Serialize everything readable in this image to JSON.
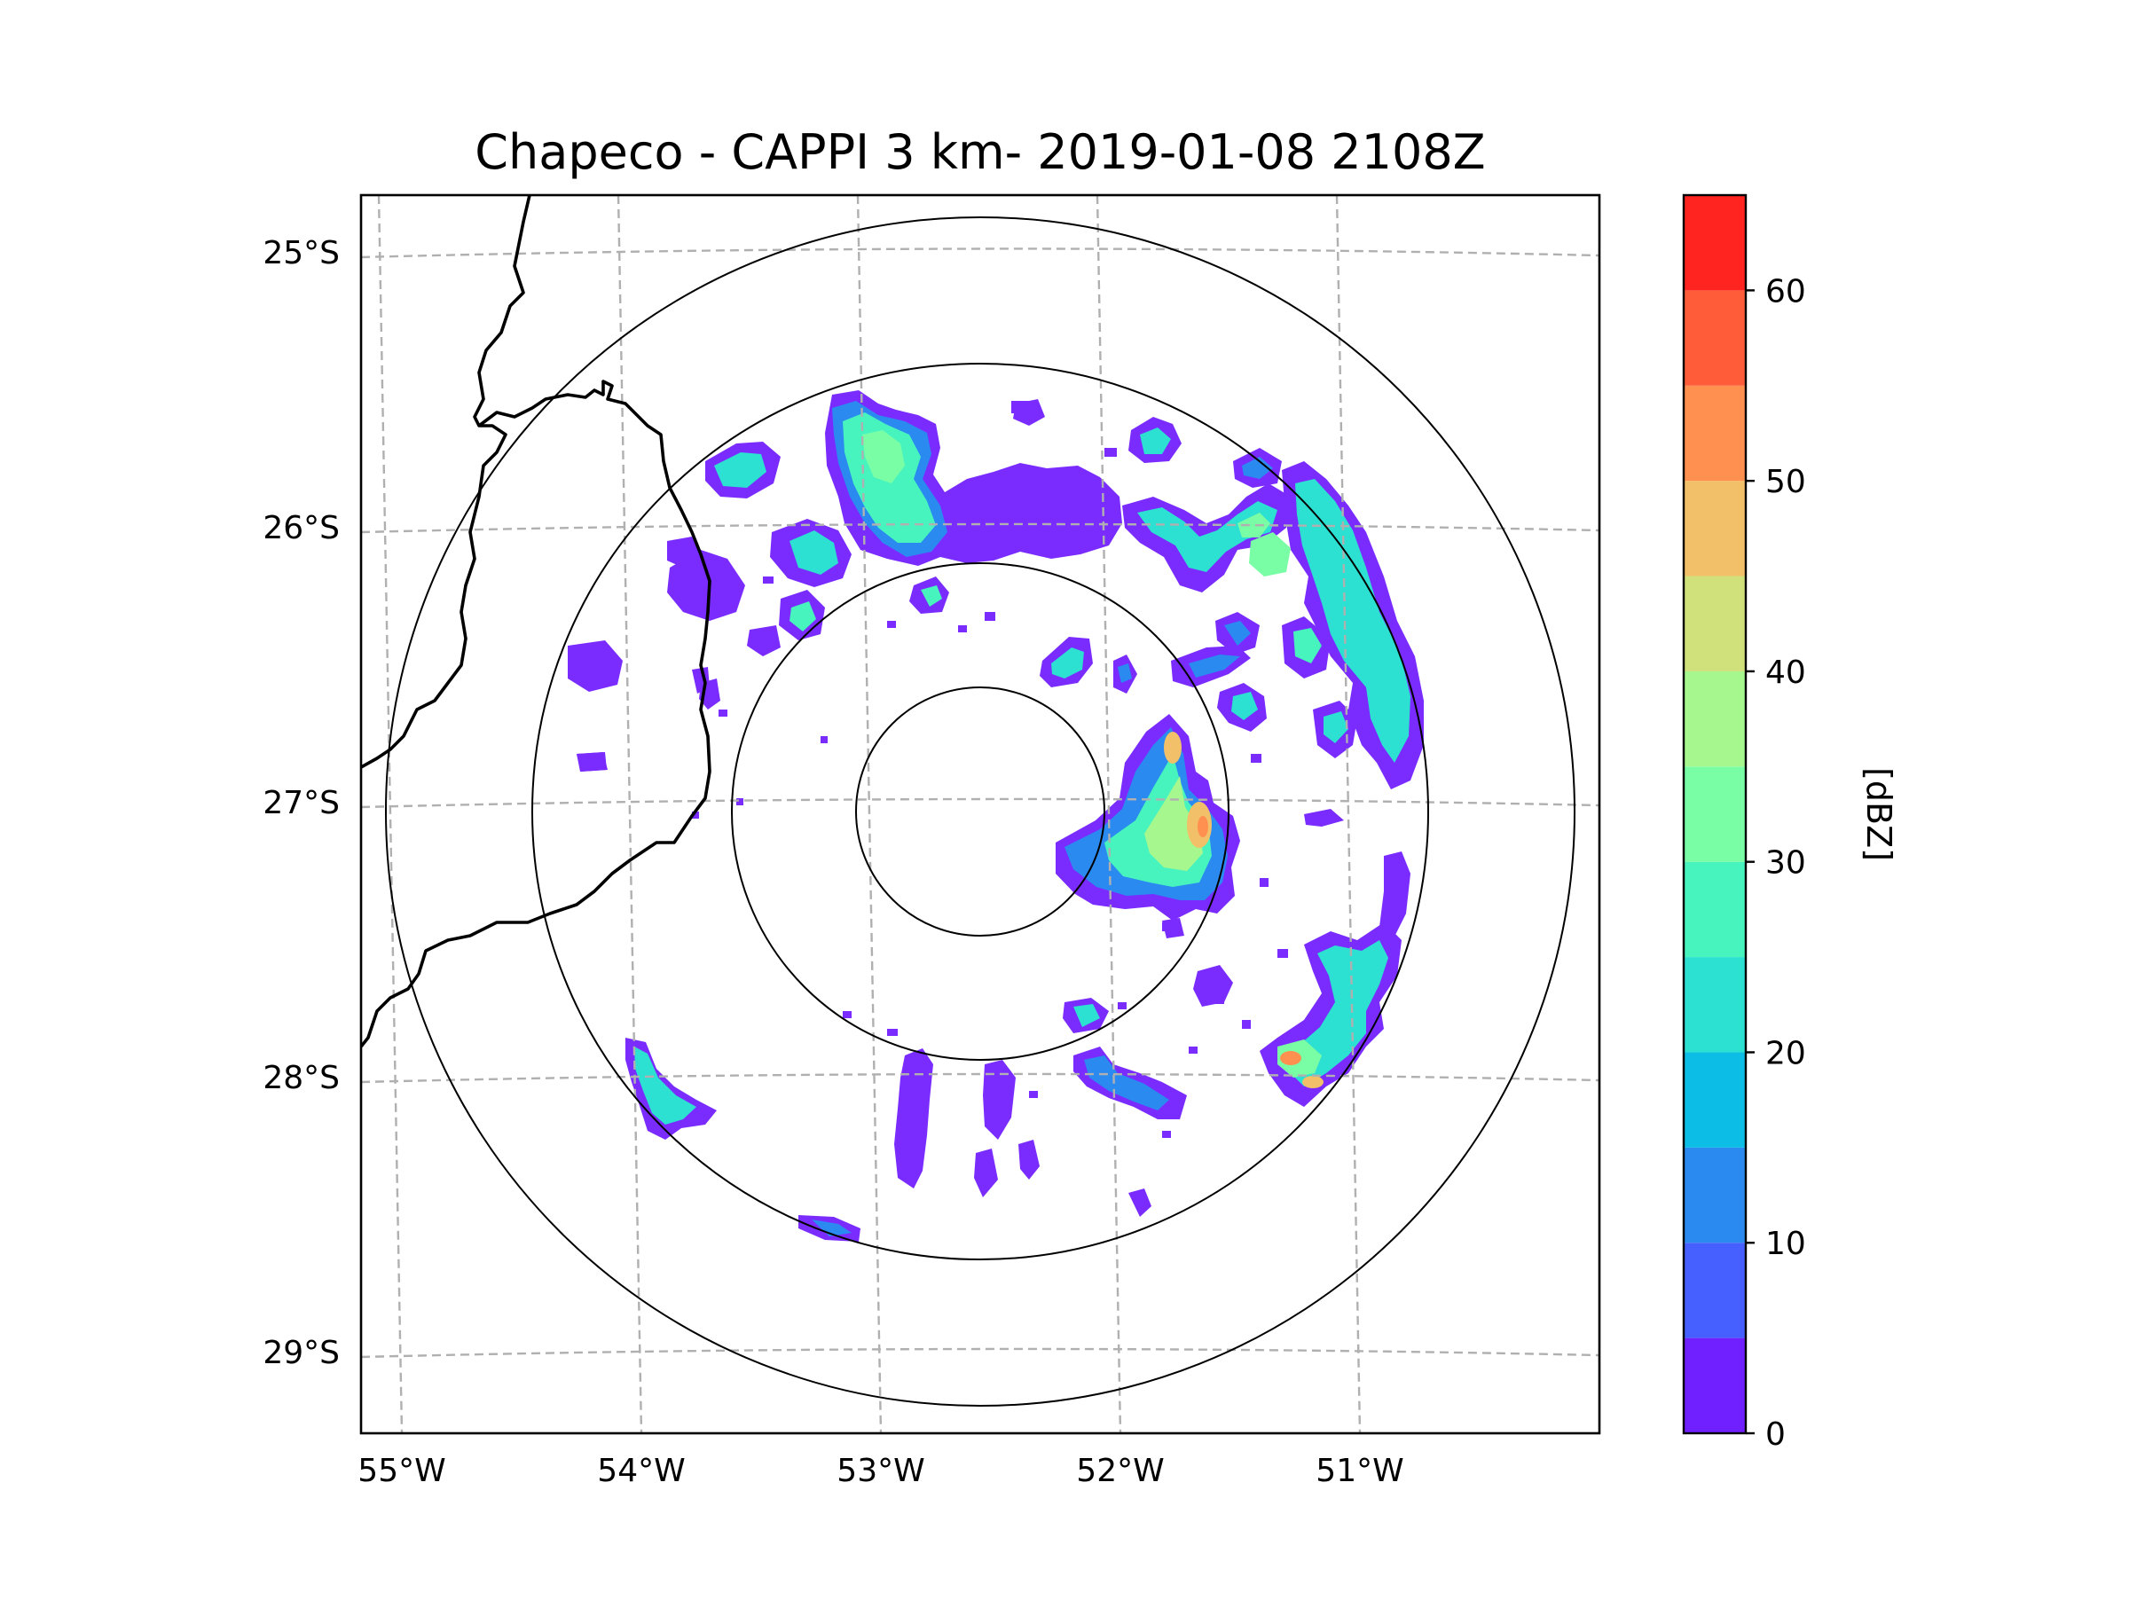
{
  "title": "Chapeco - CAPPI 3 km- 2019-01-08 2108Z",
  "map": {
    "lon_labels": [
      "55°W",
      "54°W",
      "53°W",
      "52°W",
      "51°W"
    ],
    "lat_labels": [
      "25°S",
      "26°S",
      "27°S",
      "28°S",
      "29°S"
    ],
    "radar_center": {
      "lon": -52.6,
      "lat": -27.03
    },
    "range_rings_deg": [
      0.5,
      1.0,
      1.5,
      2.2
    ]
  },
  "colorbar": {
    "label": "[dBZ]",
    "tick_labels": [
      "0",
      "10",
      "20",
      "30",
      "40",
      "50",
      "60"
    ],
    "min": 0,
    "max": 65,
    "step": 5,
    "colors": [
      "#7020ff",
      "#4560ff",
      "#2a8af0",
      "#0cbee6",
      "#2ce0d2",
      "#48f4be",
      "#7afea5",
      "#a6f88e",
      "#d0e07a",
      "#f2c068",
      "#ff9050",
      "#ff5c3a",
      "#ff2420"
    ]
  },
  "echoes": [
    {
      "lon": -51.65,
      "lat": -27.1,
      "max_dbz": 50
    },
    {
      "lon": -52.7,
      "lat": -25.85,
      "max_dbz": 30
    },
    {
      "lon": -51.3,
      "lat": -28.0,
      "max_dbz": 45
    },
    {
      "lon": -54.0,
      "lat": -28.0,
      "max_dbz": 25
    },
    {
      "lon": -51.0,
      "lat": -26.7,
      "max_dbz": 30
    },
    {
      "lon": -51.5,
      "lat": -26.1,
      "max_dbz": 35
    }
  ]
}
